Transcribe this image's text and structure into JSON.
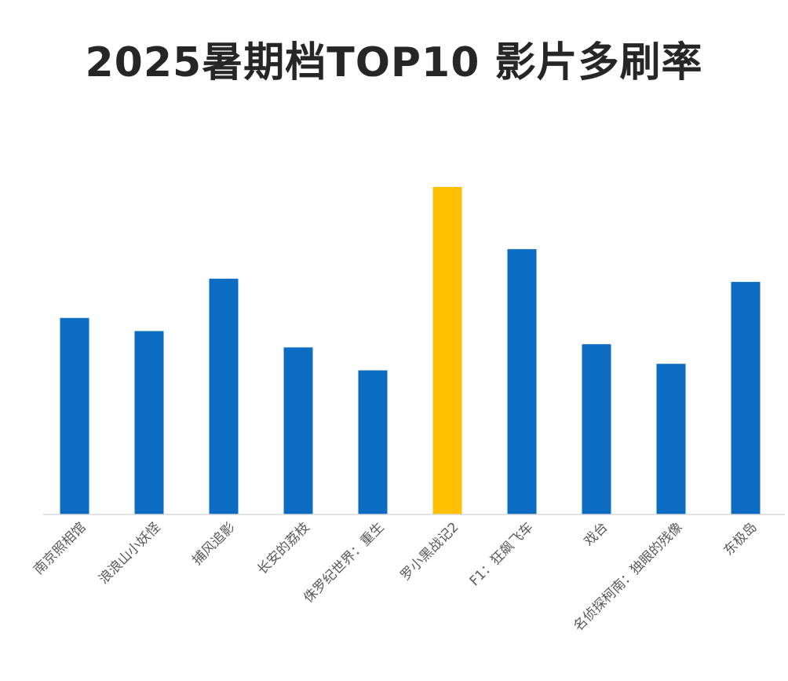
{
  "chart_data": {
    "type": "bar",
    "title": "2025暑期档TOP10 影片多刷率",
    "categories": [
      "南京照相馆",
      "浪浪山小妖怪",
      "捕风追影",
      "长安的荔枝",
      "侏罗纪世界：重生",
      "罗小黑战记2",
      "F1：狂飙飞车",
      "戏台",
      "名侦探柯南：独眼的残像",
      "东极岛"
    ],
    "values": [
      60,
      56,
      72,
      51,
      44,
      100,
      81,
      52,
      46,
      71
    ],
    "highlight_index": 5,
    "ylim": [
      0,
      110
    ],
    "xlabel": "",
    "ylabel": "",
    "grid": false,
    "legend": "none",
    "colors": {
      "bar": "#0B6CC1",
      "highlight": "#FFC000",
      "axis": "#D9D9D9",
      "label": "#595959",
      "title": "#262626"
    }
  }
}
